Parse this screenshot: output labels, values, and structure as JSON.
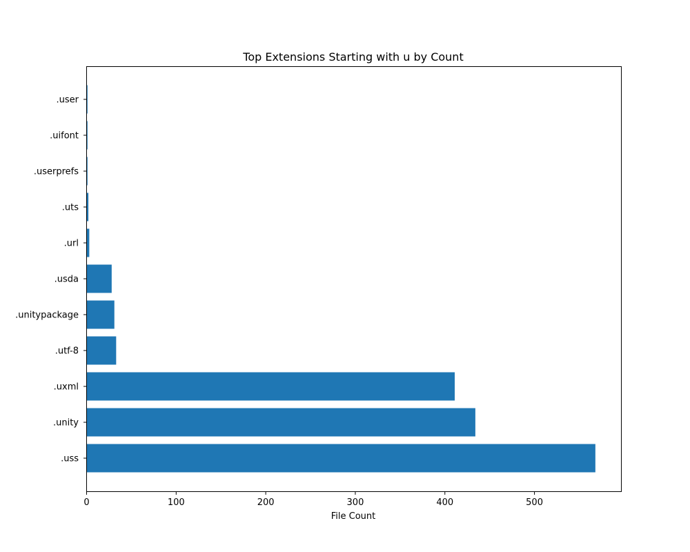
{
  "chart_data": {
    "type": "bar",
    "orientation": "horizontal",
    "title": "Top Extensions Starting with u by Count",
    "xlabel": "File Count",
    "ylabel": "",
    "categories": [
      ".uss",
      ".unity",
      ".uxml",
      ".utf-8",
      ".unitypackage",
      ".usda",
      ".url",
      ".uts",
      ".userprefs",
      ".uifont",
      ".user"
    ],
    "values": [
      568,
      434,
      411,
      33,
      31,
      28,
      3,
      2,
      1,
      1,
      1
    ],
    "xlim": [
      0,
      597
    ],
    "xticks": [
      0,
      100,
      200,
      300,
      400,
      500
    ],
    "bar_color": "#1f77b4",
    "grid": false,
    "legend": "none"
  }
}
